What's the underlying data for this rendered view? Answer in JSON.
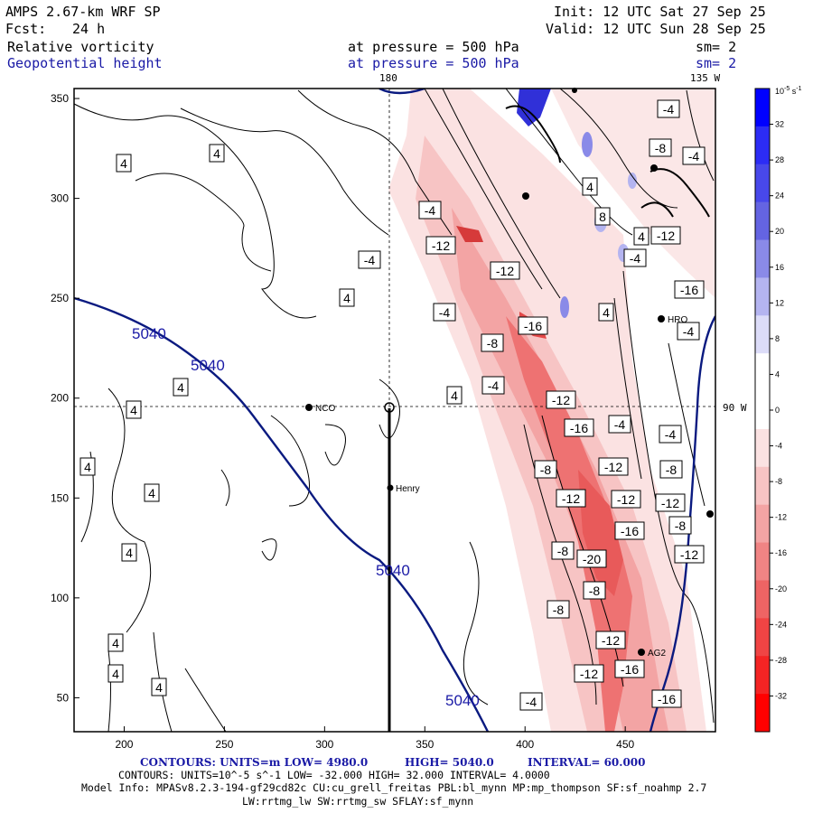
{
  "header": {
    "model": "AMPS 2.67-km WRF SP",
    "init": "Init: 12 UTC Sat 27 Sep 25",
    "fcst_label": "Fcst:",
    "fcst_value": "24 h",
    "valid": "Valid: 12 UTC Sun 28 Sep 25",
    "field1": "Relative vorticity",
    "field1_level": "at pressure =  500 hPa",
    "field1_sm": "sm= 2",
    "field2": "Geopotential height",
    "field2_level": "at pressure =  500 hPa",
    "field2_sm": "sm= 2"
  },
  "map": {
    "x_ticks": [
      "200",
      "250",
      "300",
      "350",
      "400",
      "450"
    ],
    "y_ticks": [
      "50",
      "100",
      "150",
      "200",
      "250",
      "300",
      "350"
    ],
    "lon_top_label": "180",
    "lon_top_right_label": "135 W",
    "lon_right_label": "90 W",
    "stations": [
      {
        "name": "NCO"
      },
      {
        "name": "Henry"
      },
      {
        "name": "HRO"
      },
      {
        "name": "AG2"
      }
    ],
    "height_contours": [
      "5040",
      "5040",
      "5040",
      "5040"
    ],
    "vorticity_labels": [
      "4",
      "4",
      "4",
      "4",
      "4",
      "4",
      "4",
      "4",
      "4",
      "4",
      "4",
      "-4",
      "-4",
      "-4",
      "-4",
      "-4",
      "-4",
      "-4",
      "-4",
      "-4",
      "-4",
      "-4",
      "-8",
      "-8",
      "-8",
      "-8",
      "-8",
      "-8",
      "-8",
      "-8",
      "-8",
      "-12",
      "-12",
      "-12",
      "-12",
      "-12",
      "-12",
      "-12",
      "-12",
      "-12",
      "-12",
      "-12",
      "-16",
      "-16",
      "-16",
      "-16",
      "-16",
      "-16",
      "-20",
      "4",
      "4",
      "4",
      "4",
      "8"
    ],
    "colors": {
      "height_line": "#0a1a80",
      "track": "#000000",
      "frame": "#000000"
    }
  },
  "colorbar": {
    "unit": "10^-5 s^-1",
    "unit_base": "10",
    "unit_exp": "-5",
    "unit_tail": "s",
    "unit_tail_exp": "-1",
    "ticks": [
      "32",
      "28",
      "24",
      "20",
      "16",
      "12",
      "8",
      "4",
      "0",
      "-4",
      "-8",
      "-12",
      "-16",
      "-20",
      "-24",
      "-28",
      "-32"
    ],
    "colors": [
      "#0000ff",
      "#2c2cf5",
      "#4848ea",
      "#6464e2",
      "#8a8ae8",
      "#b4b4f0",
      "#dcdcf8",
      "#ffffff",
      "#ffffff",
      "#fbe2e2",
      "#f7c4c4",
      "#f3a4a4",
      "#f08484",
      "#ee6464",
      "#f04444",
      "#f42424",
      "#ff0000"
    ]
  },
  "footer": {
    "line1_left": "CONTOURS:  UNITS=m  LOW=  4980.0",
    "line1_high": "HIGH=  5040.0",
    "line1_interval": "INTERVAL=   60.000",
    "line2": "CONTOURS:  UNITS=10^-5 s^-1  LOW= -32.000      HIGH=  32.000      INTERVAL=   4.0000",
    "line3": "Model Info: MPASv8.2.3-194-gf29cd82c CU:cu_grell_freitas PBL:bl_mynn MP:mp_thompson SF:sf_noahmp 2.7",
    "line4": "LW:rrtmg_lw SW:rrtmg_sw SFLAY:sf_mynn"
  }
}
